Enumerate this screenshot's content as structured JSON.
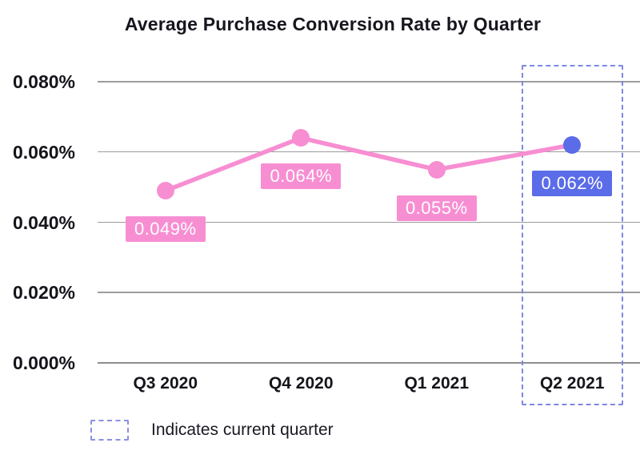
{
  "chart_data": {
    "type": "line",
    "title": "Average Purchase Conversion Rate by Quarter",
    "categories": [
      "Q3 2020",
      "Q4 2020",
      "Q1 2021",
      "Q2 2021"
    ],
    "values": [
      0.049,
      0.064,
      0.055,
      0.062
    ],
    "point_labels": [
      "0.049%",
      "0.064%",
      "0.055%",
      "0.062%"
    ],
    "unit": "%",
    "ylim": [
      0,
      0.08
    ],
    "y_ticks": [
      {
        "value": 0.08,
        "label": "0.080%"
      },
      {
        "value": 0.06,
        "label": "0.060%"
      },
      {
        "value": 0.04,
        "label": "0.040%"
      },
      {
        "value": 0.02,
        "label": "0.020%"
      },
      {
        "value": 0.0,
        "label": "0.000%"
      }
    ],
    "grid": "horizontal",
    "current_quarter_index": 3,
    "legend_position": "bottom-left"
  },
  "legend": {
    "label": "Indicates current quarter"
  },
  "colors": {
    "series_pink": "#f78ed2",
    "current_blue": "#5a6ce8",
    "current_outline": "#7d88e2",
    "gridline": "#9c9c9c",
    "axis_line": "#8e8e8e",
    "text": "#15141b",
    "label_text": "#ffffff",
    "background": "#ffffff"
  }
}
